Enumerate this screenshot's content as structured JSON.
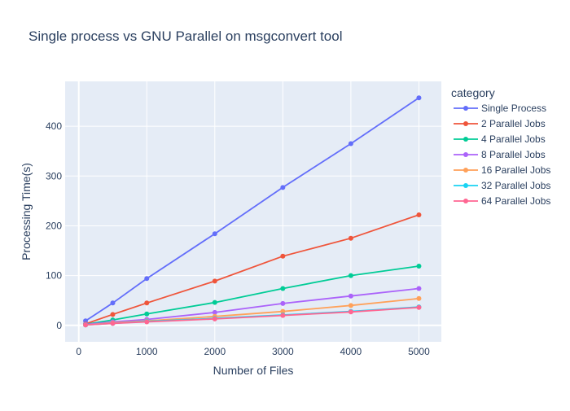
{
  "chart_data": {
    "type": "line",
    "title": "Single process vs GNU Parallel on msgconvert tool",
    "xlabel": "Number of Files",
    "ylabel": "Processing Time(s)",
    "legend_title": "category",
    "legend_position": "right",
    "xlim": [
      -200,
      5330
    ],
    "ylim": [
      -33,
      490
    ],
    "x_ticks": [
      0,
      1000,
      2000,
      3000,
      4000,
      5000
    ],
    "y_ticks": [
      0,
      100,
      200,
      300,
      400
    ],
    "x": [
      100,
      500,
      1000,
      2000,
      3000,
      4000,
      5000
    ],
    "series": [
      {
        "name": "Single Process",
        "color": "#636efa",
        "values": [
          9,
          45,
          94,
          184,
          277,
          365,
          457
        ]
      },
      {
        "name": "2 Parallel Jobs",
        "color": "#EF553B",
        "values": [
          3,
          22,
          45,
          89,
          139,
          175,
          222
        ]
      },
      {
        "name": "4 Parallel Jobs",
        "color": "#00cc96",
        "values": [
          2,
          11,
          23,
          46,
          74,
          100,
          119
        ]
      },
      {
        "name": "8 Parallel Jobs",
        "color": "#ab63fa",
        "values": [
          2,
          7,
          12,
          26,
          44,
          59,
          74
        ]
      },
      {
        "name": "16 Parallel Jobs",
        "color": "#FFA15A",
        "values": [
          1,
          5,
          9,
          18,
          28,
          40,
          54
        ]
      },
      {
        "name": "32 Parallel Jobs",
        "color": "#19d3f3",
        "values": [
          1,
          4,
          8,
          14,
          21,
          28,
          37
        ]
      },
      {
        "name": "64 Parallel Jobs",
        "color": "#FF6692",
        "values": [
          1,
          4,
          7,
          13,
          20,
          27,
          36
        ]
      }
    ]
  }
}
